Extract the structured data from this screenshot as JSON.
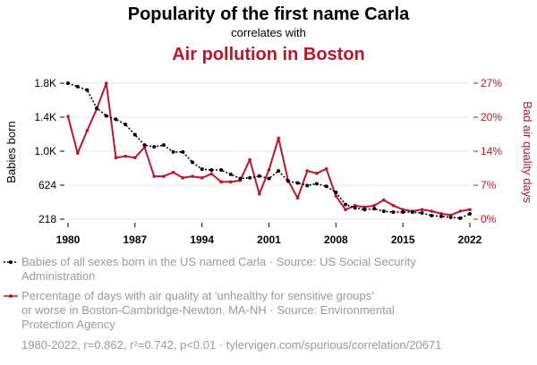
{
  "chart_data": {
    "type": "line",
    "title": "Popularity of the first name Carla",
    "subtitle": "correlates with",
    "title2": "Air pollution in Boston",
    "ylabel_left": "Babies born",
    "ylabel_right": "Bad air quality days",
    "x": [
      1980,
      1981,
      1982,
      1983,
      1984,
      1985,
      1986,
      1987,
      1988,
      1989,
      1990,
      1991,
      1992,
      1993,
      1994,
      1995,
      1996,
      1997,
      1998,
      1999,
      2000,
      2001,
      2002,
      2003,
      2004,
      2005,
      2006,
      2007,
      2008,
      2009,
      2010,
      2011,
      2012,
      2013,
      2014,
      2015,
      2016,
      2017,
      2018,
      2019,
      2020,
      2021,
      2022
    ],
    "xticks": [
      "1980",
      "1987",
      "1994",
      "2001",
      "2008",
      "2015",
      "2022"
    ],
    "yticks_left": [
      "218",
      "624",
      "1.0K",
      "1.4K",
      "1.8K"
    ],
    "yticks_right": [
      "0%",
      "7%",
      "14%",
      "20%",
      "27%"
    ],
    "ylim_left": [
      218,
      1800
    ],
    "ylim_right": [
      0,
      27
    ],
    "grid": true,
    "series": [
      {
        "name": "Babies of all sexes born in the US named Carla",
        "axis": "left",
        "color": "#000000",
        "values": [
          1800,
          1760,
          1720,
          1510,
          1420,
          1380,
          1320,
          1200,
          1080,
          1060,
          1080,
          1000,
          1000,
          880,
          800,
          790,
          790,
          740,
          690,
          700,
          720,
          690,
          780,
          660,
          640,
          610,
          630,
          600,
          530,
          390,
          350,
          330,
          340,
          310,
          300,
          300,
          300,
          290,
          260,
          250,
          240,
          230,
          280
        ]
      },
      {
        "name": "Percentage of days with air quality at 'unhealthy for sensitive groups' or worse in Boston-Cambridge-Newton, MA-NH",
        "axis": "right",
        "color": "#b5192b",
        "values": [
          20.4,
          13.1,
          17.6,
          21.9,
          27.0,
          12.2,
          12.5,
          12.2,
          14.3,
          8.5,
          8.5,
          9.3,
          8.2,
          8.5,
          8.2,
          9.0,
          7.4,
          7.4,
          7.7,
          11.8,
          5.0,
          9.8,
          16.1,
          7.7,
          4.2,
          9.6,
          9.1,
          10.0,
          4.6,
          1.9,
          2.7,
          2.4,
          2.7,
          3.8,
          2.7,
          1.9,
          1.6,
          1.9,
          1.6,
          1.1,
          0.8,
          1.6,
          1.9
        ]
      }
    ],
    "legend": [
      {
        "line1": "Babies of all sexes born in the US named Carla · Source: US Social Security",
        "line2": "Administration"
      },
      {
        "line1": "Percentage of days with air quality at 'unhealthy for sensitive groups'",
        "line2": "or worse in Boston-Cambridge-Newton, MA-NH · Source: Environmental",
        "line3": "Protection Agency"
      }
    ],
    "footer": "1980-2022, r=0.862, r²=0.742, p<0.01 · tylervigen.com/spurious/correlation/20671"
  }
}
